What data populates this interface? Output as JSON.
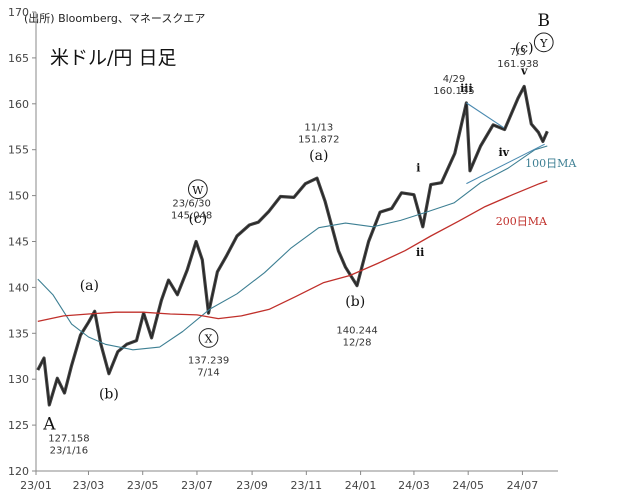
{
  "source_note": "(出所) Bloomberg、マネースクエア",
  "title": "米ドル/円 日足",
  "colors": {
    "price": "#222222",
    "ma100": "#3d7f93",
    "ma200": "#c0302b",
    "axis": "#888888",
    "triangle": "#4a8ab0"
  },
  "chart_data": {
    "type": "line",
    "title": "米ドル/円 日足",
    "xlabel": "",
    "ylabel": "",
    "ylim": [
      120,
      170
    ],
    "yticks": [
      120,
      125,
      130,
      135,
      140,
      145,
      150,
      155,
      160,
      165,
      170
    ],
    "x_tick_labels": [
      "23/01",
      "23/03",
      "23/05",
      "23/07",
      "23/09",
      "23/11",
      "24/01",
      "24/03",
      "24/05",
      "24/07"
    ],
    "grid": false,
    "series": [
      {
        "name": "",
        "kind": "price",
        "points": [
          [
            "23/01/03",
            131.0
          ],
          [
            "23/01/10",
            132.3
          ],
          [
            "23/01/16",
            127.2
          ],
          [
            "23/01/25",
            130.1
          ],
          [
            "23/02/02",
            128.5
          ],
          [
            "23/02/10",
            131.5
          ],
          [
            "23/02/20",
            134.8
          ],
          [
            "23/03/01",
            136.2
          ],
          [
            "23/03/08",
            137.4
          ],
          [
            "23/03/15",
            133.8
          ],
          [
            "23/03/24",
            130.6
          ],
          [
            "23/04/03",
            133.0
          ],
          [
            "23/04/13",
            133.8
          ],
          [
            "23/04/24",
            134.2
          ],
          [
            "23/05/02",
            137.2
          ],
          [
            "23/05/11",
            134.5
          ],
          [
            "23/05/22",
            138.6
          ],
          [
            "23/05/30",
            140.8
          ],
          [
            "23/06/09",
            139.2
          ],
          [
            "23/06/20",
            141.9
          ],
          [
            "23/06/30",
            145.0
          ],
          [
            "23/07/07",
            143.0
          ],
          [
            "23/07/14",
            137.2
          ],
          [
            "23/07/24",
            141.7
          ],
          [
            "23/08/03",
            143.4
          ],
          [
            "23/08/15",
            145.6
          ],
          [
            "23/08/29",
            146.8
          ],
          [
            "23/09/08",
            147.1
          ],
          [
            "23/09/20",
            148.3
          ],
          [
            "23/10/03",
            149.9
          ],
          [
            "23/10/18",
            149.8
          ],
          [
            "23/10/31",
            151.3
          ],
          [
            "23/11/13",
            151.9
          ],
          [
            "23/11/22",
            149.4
          ],
          [
            "23/12/07",
            144.0
          ],
          [
            "23/12/15",
            142.2
          ],
          [
            "23/12/28",
            140.2
          ],
          [
            "24/01/10",
            145.0
          ],
          [
            "24/01/23",
            148.2
          ],
          [
            "24/02/05",
            148.6
          ],
          [
            "24/02/16",
            150.3
          ],
          [
            "24/03/01",
            150.1
          ],
          [
            "24/03/11",
            146.6
          ],
          [
            "24/03/20",
            151.2
          ],
          [
            "24/04/01",
            151.4
          ],
          [
            "24/04/16",
            154.6
          ],
          [
            "24/04/29",
            160.1
          ],
          [
            "24/05/03",
            152.7
          ],
          [
            "24/05/15",
            155.4
          ],
          [
            "24/05/29",
            157.7
          ],
          [
            "24/06/11",
            157.2
          ],
          [
            "24/06/26",
            160.6
          ],
          [
            "24/07/03",
            161.9
          ],
          [
            "24/07/11",
            157.8
          ],
          [
            "24/07/19",
            156.9
          ],
          [
            "24/07/24",
            155.9
          ],
          [
            "24/07/29",
            157.0
          ]
        ]
      },
      {
        "name": "100日MA",
        "kind": "ma",
        "points": [
          [
            "23/01/03",
            140.9
          ],
          [
            "23/01/20",
            139.2
          ],
          [
            "23/02/10",
            136.0
          ],
          [
            "23/03/01",
            134.6
          ],
          [
            "23/03/20",
            133.8
          ],
          [
            "23/04/20",
            133.2
          ],
          [
            "23/05/20",
            133.5
          ],
          [
            "23/06/15",
            135.2
          ],
          [
            "23/07/15",
            137.6
          ],
          [
            "23/08/15",
            139.3
          ],
          [
            "23/09/15",
            141.6
          ],
          [
            "23/10/15",
            144.3
          ],
          [
            "23/11/15",
            146.5
          ],
          [
            "23/12/15",
            147.0
          ],
          [
            "24/01/15",
            146.6
          ],
          [
            "24/02/15",
            147.3
          ],
          [
            "24/03/15",
            148.2
          ],
          [
            "24/04/15",
            149.2
          ],
          [
            "24/05/15",
            151.4
          ],
          [
            "24/06/15",
            153.0
          ],
          [
            "24/07/15",
            155.0
          ],
          [
            "24/07/29",
            155.4
          ]
        ]
      },
      {
        "name": "200日MA",
        "kind": "ma",
        "points": [
          [
            "23/01/03",
            136.3
          ],
          [
            "23/02/01",
            136.9
          ],
          [
            "23/03/01",
            137.1
          ],
          [
            "23/04/01",
            137.3
          ],
          [
            "23/05/01",
            137.3
          ],
          [
            "23/06/01",
            137.1
          ],
          [
            "23/07/01",
            137.0
          ],
          [
            "23/07/25",
            136.6
          ],
          [
            "23/08/20",
            136.9
          ],
          [
            "23/09/20",
            137.6
          ],
          [
            "23/10/20",
            139.0
          ],
          [
            "23/11/20",
            140.5
          ],
          [
            "23/12/20",
            141.3
          ],
          [
            "24/01/20",
            142.6
          ],
          [
            "24/02/20",
            144.0
          ],
          [
            "24/03/20",
            145.6
          ],
          [
            "24/04/20",
            147.2
          ],
          [
            "24/05/20",
            148.8
          ],
          [
            "24/06/20",
            150.1
          ],
          [
            "24/07/20",
            151.3
          ],
          [
            "24/07/29",
            151.6
          ]
        ]
      }
    ],
    "triangle": {
      "upper": [
        [
          "24/04/29",
          160.1
        ],
        [
          "24/06/10",
          157.4
        ]
      ],
      "lower": [
        [
          "24/04/29",
          151.3
        ],
        [
          "24/07/26",
          155.6
        ]
      ]
    },
    "wave_labels": [
      {
        "text": "A",
        "x": "23/01/16",
        "y": 124.5,
        "circled": false,
        "size": 17
      },
      {
        "text": "(a)",
        "x": "23/03/02",
        "y": 139.7,
        "circled": false,
        "size": 14
      },
      {
        "text": "(b)",
        "x": "23/03/24",
        "y": 127.9,
        "circled": false,
        "size": 14
      },
      {
        "text": "W",
        "x": "23/07/02",
        "y": 150.2,
        "circled": true,
        "size": 13
      },
      {
        "text": "(c)",
        "x": "23/07/02",
        "y": 147.0,
        "circled": false,
        "size": 14
      },
      {
        "text": "X",
        "x": "23/07/14",
        "y": 134.0,
        "circled": true,
        "size": 13
      },
      {
        "text": "(a)",
        "x": "23/11/15",
        "y": 153.9,
        "circled": false,
        "size": 14
      },
      {
        "text": "(b)",
        "x": "23/12/26",
        "y": 138.0,
        "circled": false,
        "size": 14
      },
      {
        "text": "i",
        "x": "24/03/06",
        "y": 152.6,
        "circled": false,
        "size": 11
      },
      {
        "text": "ii",
        "x": "24/03/08",
        "y": 143.4,
        "circled": false,
        "size": 11
      },
      {
        "text": "iii",
        "x": "24/04/29",
        "y": 161.3,
        "circled": false,
        "size": 11
      },
      {
        "text": "iv",
        "x": "24/06/10",
        "y": 154.3,
        "circled": false,
        "size": 11
      },
      {
        "text": "v",
        "x": "24/07/03",
        "y": 163.2,
        "circled": false,
        "size": 11
      },
      {
        "text": "(c)",
        "x": "24/07/03",
        "y": 165.6,
        "circled": false,
        "size": 14
      },
      {
        "text": "Y",
        "x": "24/07/25",
        "y": 166.2,
        "circled": true,
        "size": 13
      },
      {
        "text": "B",
        "x": "24/07/25",
        "y": 168.5,
        "circled": false,
        "size": 17
      }
    ],
    "annotations": [
      {
        "lines": [
          "127.158",
          "23/1/16"
        ],
        "x": "23/02/07",
        "y": 123.2
      },
      {
        "lines": [
          "23/6/30",
          "145.048"
        ],
        "x": "23/06/25",
        "y": 148.8
      },
      {
        "lines": [
          "137.239",
          "7/14"
        ],
        "x": "23/07/14",
        "y": 131.7
      },
      {
        "lines": [
          "11/13",
          "151.872"
        ],
        "x": "23/11/15",
        "y": 157.1
      },
      {
        "lines": [
          "140.244",
          "12/28"
        ],
        "x": "23/12/28",
        "y": 135.0
      },
      {
        "lines": [
          "4/29",
          "160.135"
        ],
        "x": "24/04/15",
        "y": 162.4
      },
      {
        "lines": [
          "7/3",
          "161.938"
        ],
        "x": "24/06/26",
        "y": 165.3
      }
    ],
    "series_labels": [
      {
        "text": "100日MA",
        "x": "24/07/04",
        "y": 153.1,
        "color_key": "ma100"
      },
      {
        "text": "200日MA",
        "x": "24/06/01",
        "y": 146.8,
        "color_key": "ma200"
      }
    ]
  }
}
